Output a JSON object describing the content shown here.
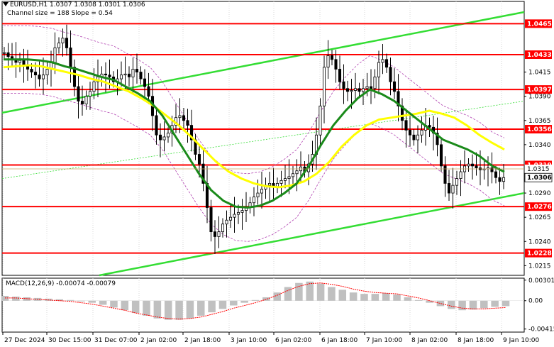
{
  "header": {
    "symbol": "EURUSD,H1",
    "ohlc": "1.0307 1.0308 1.0301 1.0306",
    "channel_info": "Channel size = 188 Slope = 0.54"
  },
  "colors": {
    "level_line": "#ff0000",
    "level_label_bg": "#ff0000",
    "ma_fast": "#1a8a1a",
    "ma_slow": "#ffff00",
    "channel": "#33dd33",
    "bands": "#b040b0",
    "candles": "#000000",
    "macd_hist": "#c0c0c0",
    "macd_signal": "#ff0000"
  },
  "chart_data": [
    {
      "type": "candlestick",
      "title": "EURUSD,H1",
      "ylim": [
        1.0205,
        1.0488
      ],
      "y_ticks": [
        "1.0465",
        "1.0433",
        "1.0415",
        "1.0397",
        "1.0390",
        "1.0365",
        "1.0356",
        "1.0340",
        "1.0319",
        "1.0315",
        "1.0306",
        "1.0290",
        "1.0276",
        "1.0265",
        "1.0240",
        "1.0228",
        "1.0215"
      ],
      "x_tick_labels": [
        "27 Dec 2024",
        "30 Dec 15:00",
        "31 Dec 07:00",
        "2 Jan 02:00",
        "2 Jan 18:00",
        "3 Jan 10:00",
        "6 Jan 02:00",
        "6 Jan 18:00",
        "7 Jan 10:00",
        "8 Jan 02:00",
        "8 Jan 18:00",
        "9 Jan 10:00"
      ],
      "levels": [
        {
          "value": 1.0465,
          "label": "1.0465"
        },
        {
          "value": 1.0433,
          "label": "1.0433"
        },
        {
          "value": 1.0397,
          "label": "1.0397"
        },
        {
          "value": 1.0356,
          "label": "1.0356"
        },
        {
          "value": 1.0319,
          "label": "1.0319"
        },
        {
          "value": 1.0276,
          "label": "1.0276"
        },
        {
          "value": 1.0228,
          "label": "1.0228"
        }
      ],
      "current_price": {
        "value": 1.0306,
        "label": "1.0306",
        "secondary_label": "1.0315",
        "secondary_value": 1.0315
      },
      "candles_approx_close": [
        1.0435,
        1.0431,
        1.0428,
        1.0425,
        1.0427,
        1.0422,
        1.0418,
        1.0415,
        1.0412,
        1.0408,
        1.0412,
        1.0418,
        1.0425,
        1.044,
        1.0445,
        1.045,
        1.044,
        1.042,
        1.04,
        1.0385,
        1.0382,
        1.039,
        1.0395,
        1.0405,
        1.041,
        1.0413,
        1.0412,
        1.041,
        1.0405,
        1.0408,
        1.0412,
        1.0413,
        1.041,
        1.0418,
        1.0415,
        1.0408,
        1.04,
        1.039,
        1.037,
        1.035,
        1.0345,
        1.0348,
        1.0352,
        1.036,
        1.0368,
        1.037,
        1.0365,
        1.036,
        1.0345,
        1.033,
        1.032,
        1.03,
        1.0275,
        1.025,
        1.0245,
        1.025,
        1.0258,
        1.0262,
        1.0265,
        1.0268,
        1.027,
        1.0272,
        1.0275,
        1.028,
        1.0286,
        1.029,
        1.0294,
        1.0298,
        1.03,
        1.0296,
        1.03,
        1.0303,
        1.0305,
        1.0307,
        1.031,
        1.0313,
        1.0317,
        1.0312,
        1.032,
        1.033,
        1.035,
        1.038,
        1.042,
        1.0432,
        1.0428,
        1.0418,
        1.0405,
        1.0398,
        1.0395,
        1.0396,
        1.0398,
        1.0395,
        1.0398,
        1.04,
        1.0398,
        1.041,
        1.0425,
        1.0428,
        1.042,
        1.0405,
        1.0395,
        1.038,
        1.0365,
        1.0355,
        1.035,
        1.0345,
        1.035,
        1.0355,
        1.036,
        1.0358,
        1.0352,
        1.034,
        1.0318,
        1.03,
        1.029,
        1.0298,
        1.0305,
        1.0312,
        1.0318,
        1.032,
        1.0318,
        1.0316,
        1.0314,
        1.0315,
        1.0316,
        1.0312,
        1.0306,
        1.0302,
        1.0306
      ],
      "ma_fast_approx": [
        1.0428,
        1.0428,
        1.0428,
        1.0427,
        1.0425,
        1.0421,
        1.0418,
        1.0414,
        1.041,
        1.0407,
        1.04,
        1.0393,
        1.0385,
        1.037,
        1.035,
        1.033,
        1.031,
        1.0293,
        1.0282,
        1.0276,
        1.0275,
        1.0277,
        1.0282,
        1.029,
        1.03,
        1.0318,
        1.034,
        1.036,
        1.0375,
        1.0388,
        1.0397,
        1.0392,
        1.0385,
        1.0375,
        1.0365,
        1.0355,
        1.0345,
        1.034,
        1.0335,
        1.0328,
        1.0318,
        1.0312
      ],
      "ma_slow_approx": [
        1.042,
        1.0421,
        1.0422,
        1.0421,
        1.0418,
        1.0415,
        1.0412,
        1.0408,
        1.0405,
        1.04,
        1.0395,
        1.0388,
        1.038,
        1.037,
        1.036,
        1.0348,
        1.0335,
        1.0322,
        1.0312,
        1.0305,
        1.03,
        1.0297,
        1.0296,
        1.0298,
        1.0302,
        1.031,
        1.0322,
        1.0338,
        1.035,
        1.036,
        1.0366,
        1.0368,
        1.037,
        1.0372,
        1.0375,
        1.0372,
        1.0368,
        1.036,
        1.035,
        1.0342,
        1.0335
      ]
    },
    {
      "type": "bar",
      "title": "MACD(12,26,9) -0.00074 -0.00079",
      "ylim": [
        -0.0046,
        0.0033
      ],
      "y_ticks": [
        "0.00301",
        "0.00",
        "-0.00415"
      ],
      "hist_approx": [
        0.0007,
        0.0006,
        0.0005,
        0.0004,
        0.0003,
        0.0002,
        0.0001,
        -0.0001,
        -0.0003,
        -0.0006,
        -0.001,
        -0.0014,
        -0.0018,
        -0.0022,
        -0.0026,
        -0.0028,
        -0.0028,
        -0.0026,
        -0.0022,
        -0.0017,
        -0.0012,
        -0.0007,
        -0.0003,
        0.0001,
        0.0005,
        0.0012,
        0.002,
        0.0026,
        0.0028,
        0.0025,
        0.002,
        0.0016,
        0.0012,
        0.001,
        0.001,
        0.0011,
        0.0009,
        0.0005,
        0.0001,
        -0.0003,
        -0.0008,
        -0.0012,
        -0.0014,
        -0.0013,
        -0.0011,
        -0.0009,
        -0.0008
      ],
      "signal_approx": [
        0.0004,
        0.0004,
        0.0003,
        0.0002,
        0.0001,
        0.0,
        -0.0001,
        -0.0003,
        -0.0005,
        -0.0008,
        -0.0011,
        -0.0014,
        -0.0018,
        -0.0021,
        -0.0024,
        -0.0026,
        -0.0027,
        -0.0026,
        -0.0024,
        -0.002,
        -0.0016,
        -0.0011,
        -0.0007,
        -0.0003,
        0.0002,
        0.0008,
        0.0015,
        0.0021,
        0.0025,
        0.0026,
        0.0024,
        0.0021,
        0.0017,
        0.0014,
        0.0012,
        0.0011,
        0.001,
        0.0007,
        0.0004,
        0.0,
        -0.0004,
        -0.0008,
        -0.0011,
        -0.0012,
        -0.0012,
        -0.0011,
        -0.001
      ]
    }
  ]
}
